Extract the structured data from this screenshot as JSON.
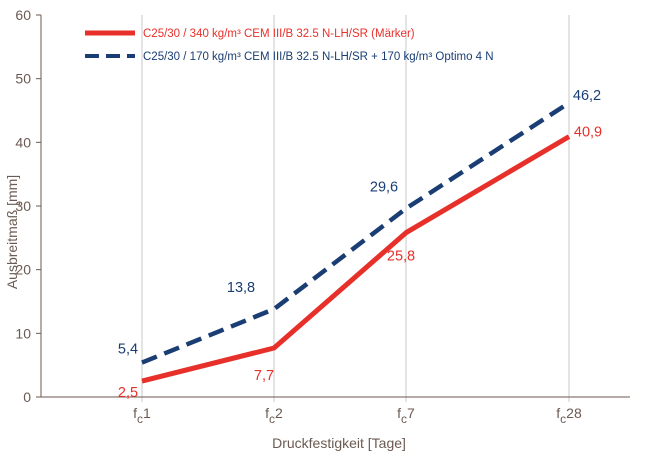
{
  "colors": {
    "series1": "#e8302a",
    "series2": "#1a3e73",
    "axis": "#6b5a52",
    "grid": "#c8c8c8"
  },
  "chart_data": {
    "type": "line",
    "categories": [
      "f_c1",
      "f_c2",
      "f_c7",
      "f_c28"
    ],
    "x_ticks": [
      {
        "base": "f",
        "sub": "c",
        "suffix": "1"
      },
      {
        "base": "f",
        "sub": "c",
        "suffix": "2"
      },
      {
        "base": "f",
        "sub": "c",
        "suffix": "7"
      },
      {
        "base": "f",
        "sub": "c",
        "suffix": "28"
      }
    ],
    "xlabel": "Druckfestigkeit [Tage]",
    "ylabel": "Ausbreitmaß [mm]",
    "ylim": [
      0,
      60
    ],
    "yticks": [
      0,
      10,
      20,
      30,
      40,
      50,
      60
    ],
    "grid": "vertical",
    "legend_position": "top-left",
    "series": [
      {
        "name": "C25/30 / 340 kg/m³ CEM III/B 32.5 N-LH/SR (Märker)",
        "style": "solid",
        "values": [
          2.5,
          7.7,
          25.8,
          40.9
        ],
        "value_labels": [
          "2,5",
          "7,7",
          "25,8",
          "40,9"
        ]
      },
      {
        "name": "C25/30 / 170 kg/m³ CEM III/B 32.5 N-LH/SR + 170 kg/m³ Optimo 4 N",
        "style": "dashed",
        "values": [
          5.4,
          13.8,
          29.6,
          46.2
        ],
        "value_labels": [
          "5,4",
          "13,8",
          "29,6",
          "46,2"
        ]
      }
    ]
  }
}
